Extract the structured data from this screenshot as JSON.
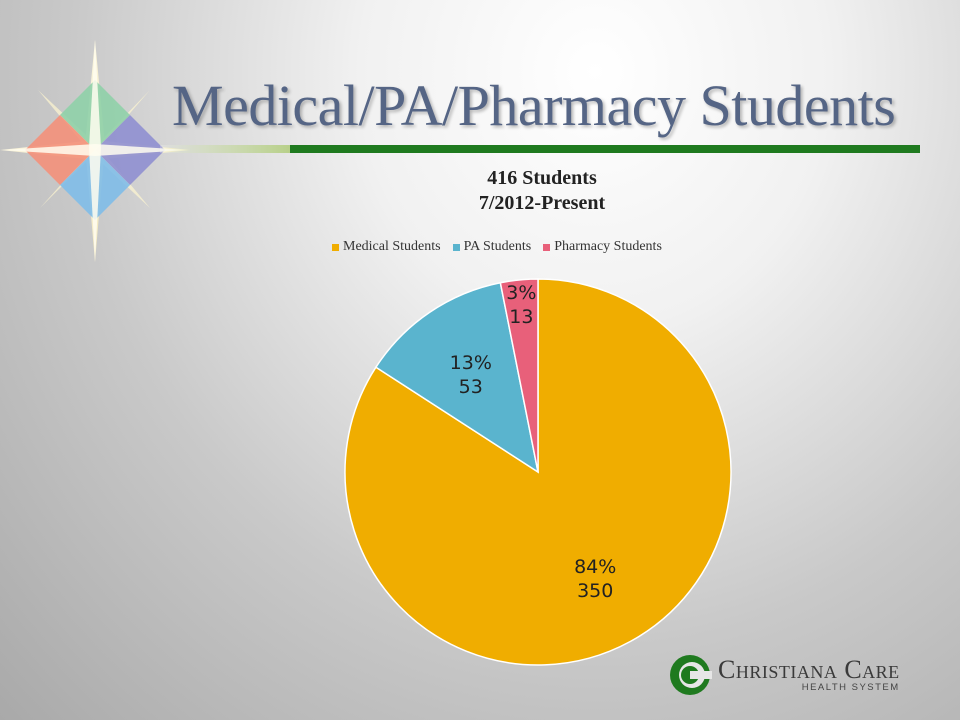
{
  "slide": {
    "title": "Medical/PA/Pharmacy Students"
  },
  "chart_data": {
    "type": "pie",
    "title_lines": [
      "416 Students",
      "7/2012-Present"
    ],
    "categories": [
      "Medical Students",
      "PA Students",
      "Pharmacy Students"
    ],
    "values": [
      350,
      53,
      13
    ],
    "percent_labels": [
      "84%",
      "13%",
      "3%"
    ],
    "colors": [
      "#f0ad00",
      "#5ab4ce",
      "#e8607a"
    ],
    "legend_position": "top",
    "start_angle": "12 o'clock",
    "direction": "clockwise"
  },
  "logo": {
    "name": "Christiana Care",
    "subtitle": "HEALTH SYSTEM"
  }
}
